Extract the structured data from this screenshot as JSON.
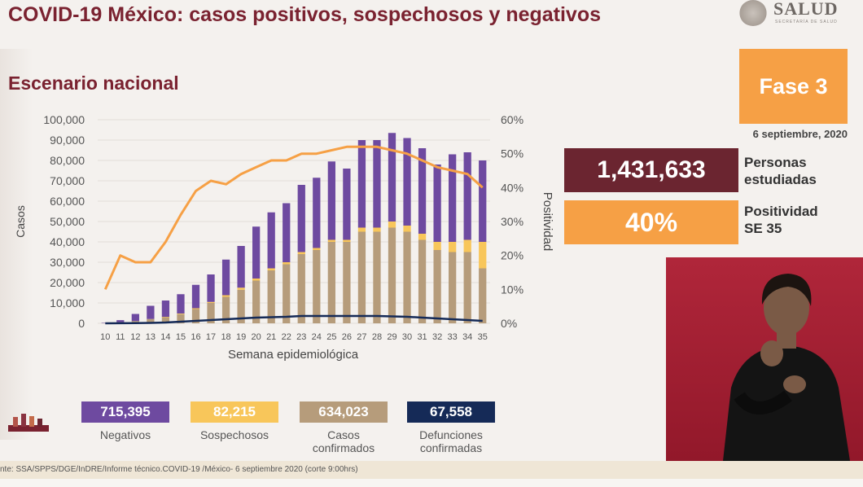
{
  "header": {
    "title": "COVID-19 México: casos positivos, sospechosos y negativos",
    "subtitle": "Escenario nacional",
    "logo_text": "SALUD",
    "logo_subtext": "SECRETARÍA DE SALUD"
  },
  "phase": {
    "label": "Fase 3",
    "date": "6 septiembre, 2020"
  },
  "stats": {
    "people_value": "1,431,633",
    "people_label_1": "Personas",
    "people_label_2": "estudiadas",
    "positivity_value": "40%",
    "positivity_label_1": "Positividad",
    "positivity_label_2": "SE 35"
  },
  "legend": [
    {
      "value": "715,395",
      "label_1": "Negativos",
      "label_2": "",
      "color": "#6e4aa0"
    },
    {
      "value": "82,215",
      "label_1": "Sospechosos",
      "label_2": "",
      "color": "#f8c65a"
    },
    {
      "value": "634,023",
      "label_1": "Casos",
      "label_2": "confirmados",
      "color": "#b69c7b"
    },
    {
      "value": "67,558",
      "label_1": "Defunciones",
      "label_2": "confirmadas",
      "color": "#152a57"
    }
  ],
  "footer": "nte: SSA/SPPS/DGE/InDRE/Informe técnico.COVID-19 /México- 6 septiembre 2020 (corte 9:00hrs)",
  "colors": {
    "brand": "#7a2230",
    "negativos": "#6e4aa0",
    "sospechosos": "#f8c65a",
    "confirmados": "#b69c7b",
    "defunciones": "#152a57",
    "positividad": "#f6a045"
  },
  "chart_data": {
    "type": "bar",
    "stacked": true,
    "xlabel": "Semana epidemiológica",
    "ylabel": "Casos",
    "y2label": "Positividad",
    "ylim": [
      0,
      100000
    ],
    "y2lim": [
      0,
      60
    ],
    "yticks": [
      "0",
      "10,000",
      "20,000",
      "30,000",
      "40,000",
      "50,000",
      "60,000",
      "70,000",
      "80,000",
      "90,000",
      "100,000"
    ],
    "y2ticks": [
      "0%",
      "10%",
      "20%",
      "30%",
      "40%",
      "50%",
      "60%"
    ],
    "categories": [
      "10",
      "11",
      "12",
      "13",
      "14",
      "15",
      "16",
      "17",
      "18",
      "19",
      "20",
      "21",
      "22",
      "23",
      "24",
      "25",
      "26",
      "27",
      "28",
      "29",
      "30",
      "31",
      "32",
      "33",
      "34",
      "35"
    ],
    "series": [
      {
        "name": "Casos confirmados",
        "color": "#b69c7b",
        "values": [
          50,
          500,
          1000,
          2000,
          3000,
          4500,
          7000,
          10000,
          13000,
          16500,
          21000,
          26000,
          29000,
          34000,
          36000,
          40000,
          40000,
          45000,
          45000,
          47000,
          45000,
          41000,
          36000,
          35000,
          35000,
          27000
        ]
      },
      {
        "name": "Sospechosos",
        "color": "#f8c65a",
        "values": [
          0,
          50,
          100,
          100,
          200,
          300,
          400,
          500,
          800,
          1000,
          1000,
          1000,
          1000,
          1000,
          1000,
          1000,
          1000,
          2000,
          2000,
          3000,
          3000,
          3000,
          4000,
          5000,
          6000,
          13000
        ]
      },
      {
        "name": "Negativos",
        "color": "#6e4aa0",
        "values": [
          200,
          1000,
          3500,
          6500,
          8000,
          9500,
          11500,
          13500,
          17500,
          20500,
          25500,
          27500,
          29000,
          33000,
          34500,
          38500,
          35000,
          43000,
          43000,
          43500,
          43000,
          42000,
          38000,
          43000,
          43000,
          40000
        ]
      }
    ],
    "lines": [
      {
        "name": "Defunciones",
        "axis": "y",
        "color": "#152a57",
        "values": [
          0,
          50,
          100,
          200,
          400,
          800,
          1200,
          1600,
          2000,
          2400,
          2800,
          3000,
          3200,
          3600,
          3600,
          3600,
          3600,
          3600,
          3600,
          3400,
          3200,
          2800,
          2400,
          2000,
          1600,
          1200
        ]
      },
      {
        "name": "Positividad",
        "axis": "y2",
        "color": "#f6a045",
        "values": [
          10,
          20,
          18,
          18,
          24,
          32,
          39,
          42,
          41,
          44,
          46,
          48,
          48,
          50,
          50,
          51,
          52,
          52,
          52,
          51,
          50,
          48,
          46,
          45,
          44,
          40
        ]
      }
    ]
  }
}
